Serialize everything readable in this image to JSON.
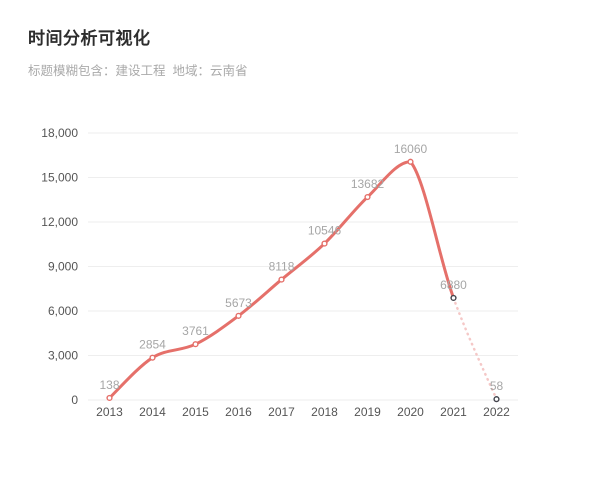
{
  "header": {
    "title": "时间分析可视化",
    "subtitle": "标题模糊包含：建设工程  地域：云南省"
  },
  "colors": {
    "line": "#e5706a",
    "forecast_line": "#f5c8c7",
    "marker_fill": "#ffffff",
    "marker_dark_stroke": "#45454d",
    "grid": "#eeeeee",
    "axis_text": "#555555",
    "value_label_text": "#a6a6a6",
    "title_text": "#2d2d2d",
    "subtitle_text": "#aaaaaa",
    "background": "#ffffff"
  },
  "chart_data": {
    "type": "line",
    "title": "时间分析可视化",
    "x": [
      "2013",
      "2014",
      "2015",
      "2016",
      "2017",
      "2018",
      "2019",
      "2020",
      "2021",
      "2022"
    ],
    "values": [
      138,
      2854,
      3761,
      5673,
      8118,
      10546,
      13682,
      16060,
      6880,
      58
    ],
    "data_labels": [
      "138",
      "2854",
      "3761",
      "5673",
      "8118",
      "10546",
      "13682",
      "16060",
      "6880",
      "58"
    ],
    "xlabel": "",
    "ylabel": "",
    "ylim": [
      0,
      18000
    ],
    "yticks": [
      0,
      3000,
      6000,
      9000,
      12000,
      15000,
      18000
    ],
    "ytick_labels": [
      "0",
      "3,000",
      "6,000",
      "9,000",
      "12,000",
      "15,000",
      "18,000"
    ],
    "grid": true,
    "legend": false,
    "smooth": true,
    "solid_segment_end_index": 8,
    "dashed_segment_indices": [
      8,
      9
    ],
    "dark_marker_indices": [
      8,
      9
    ]
  }
}
